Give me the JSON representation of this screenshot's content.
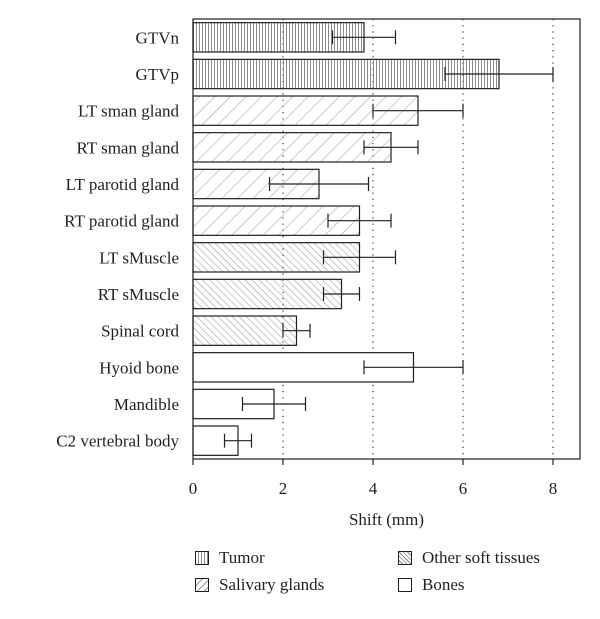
{
  "chart_data": {
    "type": "bar",
    "orientation": "horizontal",
    "xlabel": "Shift (mm)",
    "xlim": [
      0,
      8.6
    ],
    "xticks": [
      0,
      2,
      4,
      6,
      8
    ],
    "grid": "dotted vertical at 2, 4, 6, 8",
    "categories": [
      "GTVn",
      "GTVp",
      "LT sman gland",
      "RT sman gland",
      "LT parotid gland",
      "RT parotid gland",
      "LT sMuscle",
      "RT sMuscle",
      "Spinal cord",
      "Hyoid bone",
      "Mandible",
      "C2 vertebral body"
    ],
    "values": [
      3.8,
      6.8,
      5.0,
      4.4,
      2.8,
      3.7,
      3.7,
      3.3,
      2.3,
      4.9,
      1.8,
      1.0
    ],
    "error_low": [
      3.1,
      5.6,
      4.0,
      3.8,
      1.7,
      3.0,
      2.9,
      2.9,
      2.0,
      3.8,
      1.1,
      0.7
    ],
    "error_high": [
      4.5,
      8.0,
      6.0,
      5.0,
      3.9,
      4.4,
      4.5,
      3.7,
      2.6,
      6.0,
      2.5,
      1.3
    ],
    "groups": [
      "tumor",
      "tumor",
      "salivary",
      "salivary",
      "salivary",
      "salivary",
      "soft",
      "soft",
      "soft",
      "bones",
      "bones",
      "bones"
    ],
    "legend": [
      {
        "key": "tumor",
        "label": "Tumor"
      },
      {
        "key": "soft",
        "label": "Other soft tissues"
      },
      {
        "key": "salivary",
        "label": "Salivary glands"
      },
      {
        "key": "bones",
        "label": "Bones"
      }
    ],
    "legend_position": "bottom"
  },
  "colors": {
    "ink": "#231f20",
    "hatch": "#8c8c8c",
    "grid": "#231f20",
    "background": "#ffffff"
  }
}
